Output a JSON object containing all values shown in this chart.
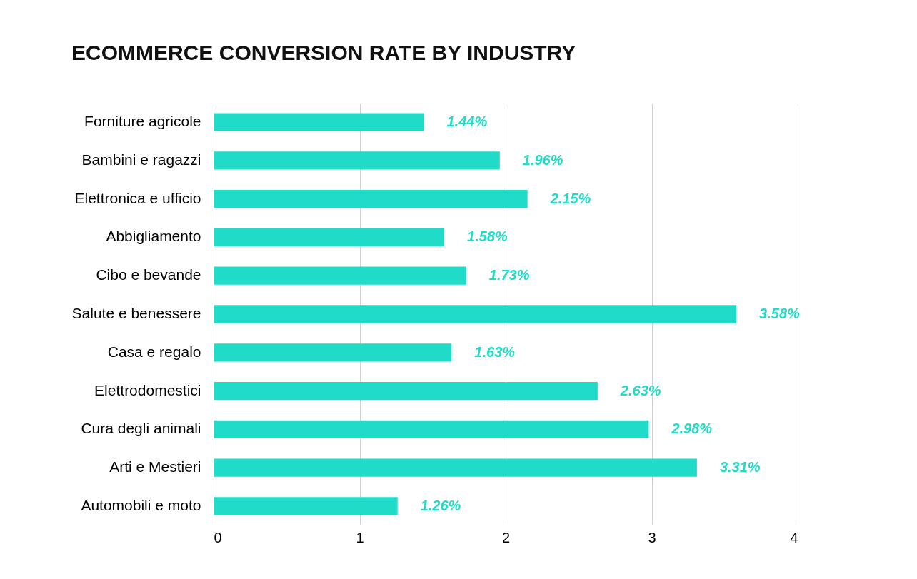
{
  "chart_data": {
    "type": "bar",
    "orientation": "horizontal",
    "title": "ECOMMERCE CONVERSION RATE BY INDUSTRY",
    "categories": [
      "Forniture agricole",
      "Bambini e ragazzi",
      "Elettronica e ufficio",
      "Abbigliamento",
      "Cibo e bevande",
      "Salute e benessere",
      "Casa e regalo",
      "Elettrodomestici",
      "Cura degli animali",
      "Arti e Mestieri",
      "Automobili e moto"
    ],
    "values": [
      1.44,
      1.96,
      2.15,
      1.58,
      1.73,
      3.58,
      1.63,
      2.63,
      2.98,
      3.31,
      1.26
    ],
    "value_labels": [
      "1.44%",
      "1.96%",
      "2.15%",
      "1.58%",
      "1.73%",
      "3.58%",
      "1.63%",
      "2.63%",
      "2.98%",
      "3.31%",
      "1.26%"
    ],
    "color": "#20dbc8",
    "xlim": [
      0,
      4
    ],
    "xticks": [
      0,
      1,
      2,
      3,
      4
    ],
    "grid": "x"
  }
}
